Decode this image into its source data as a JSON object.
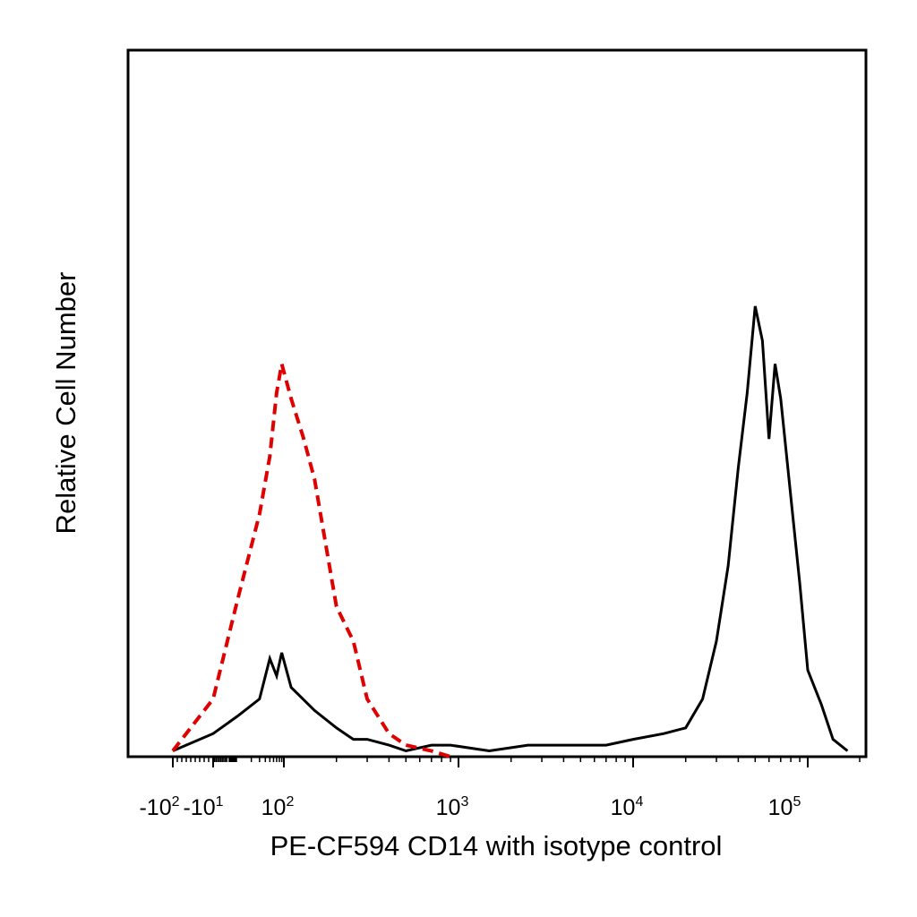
{
  "chart_data": {
    "type": "line",
    "title": "",
    "xlabel": "PE-CF594 CD14 with isotype control",
    "ylabel": "Relative Cell Number",
    "x_scale": "biexponential (logicle)",
    "xlim": [
      -200,
      200000
    ],
    "ylim": [
      0,
      1
    ],
    "grid": false,
    "legend": "none",
    "x_tick_labels": [
      {
        "base": "-10",
        "exp": "2"
      },
      {
        "base": "-10",
        "exp": "1"
      },
      {
        "base": "10",
        "exp": "2"
      },
      {
        "base": "10",
        "exp": "3"
      },
      {
        "base": "10",
        "exp": "4"
      },
      {
        "base": "10",
        "exp": "5"
      }
    ],
    "series": [
      {
        "color": "#000000",
        "style": "solid",
        "x": [
          -100,
          -10,
          10,
          30,
          50,
          70,
          90,
          110,
          150,
          200,
          250,
          300,
          400,
          500,
          700,
          900,
          1500,
          2500,
          4000,
          7000,
          10000,
          15000,
          20000,
          25000,
          30000,
          35000,
          40000,
          45000,
          50000,
          55000,
          60000,
          65000,
          70000,
          80000,
          90000,
          100000,
          120000,
          140000,
          170000
        ],
        "y": [
          0.01,
          0.04,
          0.07,
          0.1,
          0.17,
          0.14,
          0.18,
          0.12,
          0.08,
          0.05,
          0.03,
          0.03,
          0.02,
          0.01,
          0.02,
          0.02,
          0.01,
          0.02,
          0.02,
          0.02,
          0.03,
          0.04,
          0.05,
          0.1,
          0.2,
          0.33,
          0.5,
          0.63,
          0.78,
          0.72,
          0.55,
          0.68,
          0.62,
          0.45,
          0.3,
          0.15,
          0.09,
          0.03,
          0.01
        ]
      },
      {
        "color": "#e00000",
        "style": "dashed",
        "x": [
          -100,
          -10,
          10,
          30,
          50,
          70,
          90,
          110,
          130,
          150,
          180,
          200,
          250,
          300,
          400,
          500,
          700,
          900
        ],
        "y": [
          0.01,
          0.1,
          0.27,
          0.42,
          0.52,
          0.63,
          0.68,
          0.62,
          0.55,
          0.48,
          0.34,
          0.26,
          0.2,
          0.1,
          0.04,
          0.02,
          0.01,
          0.0
        ]
      }
    ]
  }
}
